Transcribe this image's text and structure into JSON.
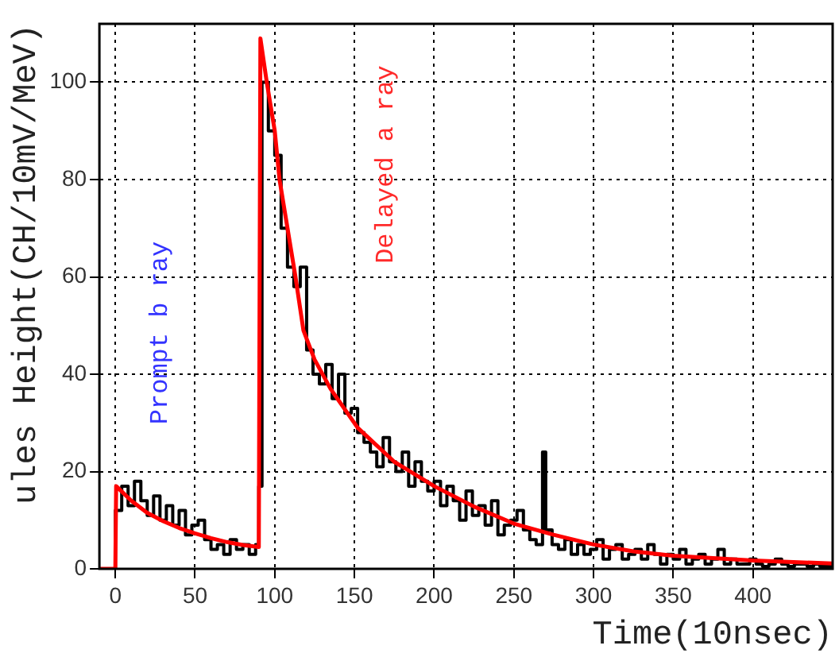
{
  "chart_data": {
    "type": "step",
    "xlabel": "Time(10nsec)",
    "ylabel": "ules Height(CH/10mV/MeV)",
    "xlim": [
      -10,
      450
    ],
    "xticks": [
      0,
      50,
      100,
      150,
      200,
      250,
      300,
      350,
      400
    ],
    "ylim": [
      0,
      112
    ],
    "yticks": [
      0,
      20,
      40,
      60,
      80,
      100
    ],
    "grid": true,
    "legend": false,
    "marker": "none",
    "series": [
      {
        "type": "step",
        "color": "#000000",
        "x": [
          -10,
          0,
          4,
          8,
          12,
          16,
          20,
          24,
          28,
          32,
          36,
          40,
          44,
          48,
          52,
          56,
          60,
          64,
          68,
          72,
          76,
          80,
          84,
          88,
          90,
          92,
          96,
          100,
          104,
          108,
          112,
          116,
          120,
          124,
          128,
          132,
          136,
          140,
          144,
          148,
          152,
          156,
          160,
          164,
          168,
          172,
          176,
          180,
          184,
          188,
          192,
          196,
          200,
          204,
          208,
          212,
          216,
          220,
          224,
          228,
          232,
          236,
          240,
          244,
          248,
          252,
          256,
          260,
          264,
          268,
          270,
          274,
          278,
          282,
          286,
          290,
          294,
          298,
          302,
          306,
          310,
          314,
          318,
          322,
          326,
          330,
          334,
          338,
          342,
          346,
          350,
          354,
          358,
          362,
          366,
          370,
          374,
          378,
          382,
          386,
          390,
          394,
          398,
          402,
          406,
          410,
          414,
          418,
          422,
          426,
          430,
          434,
          438,
          442,
          446,
          450
        ],
        "values": [
          0,
          12,
          17,
          13,
          18,
          14,
          11,
          15,
          10,
          13,
          9,
          12,
          7,
          9,
          10,
          6,
          4,
          5,
          3,
          6,
          4,
          5,
          3,
          5,
          17,
          100,
          90,
          85,
          70,
          62,
          58,
          62,
          45,
          40,
          38,
          42,
          35,
          40,
          32,
          33,
          28,
          26,
          24,
          21,
          27,
          22,
          20,
          24,
          17,
          22,
          18,
          16,
          18,
          13,
          17,
          14,
          10,
          16,
          11,
          13,
          9,
          14,
          7,
          9,
          10,
          12,
          8,
          6,
          5,
          24,
          8,
          5,
          4,
          6,
          3,
          5,
          3,
          4,
          6,
          2,
          4,
          5,
          2,
          3,
          4,
          2,
          5,
          3,
          1,
          3,
          2,
          4,
          1,
          2,
          3,
          1,
          2,
          4,
          1,
          2,
          1,
          1,
          2,
          1,
          0.5,
          1,
          2,
          1,
          0.5,
          1,
          1,
          0.5,
          1,
          0.5,
          0.5,
          0.5
        ]
      },
      {
        "type": "line",
        "color": "#ff0000",
        "x": [
          -10,
          0,
          0.5,
          10,
          20,
          30,
          40,
          50,
          60,
          70,
          80,
          90,
          91,
          95,
          100,
          103,
          108,
          113,
          118,
          125,
          135,
          152,
          175,
          200,
          225,
          250,
          275,
          300,
          325,
          350,
          400,
          450
        ],
        "values": [
          0,
          0,
          17,
          14,
          11.5,
          9.8,
          8.4,
          7.3,
          6.3,
          5.5,
          4.9,
          4.5,
          109,
          100,
          90,
          80,
          70,
          60,
          49,
          43,
          37,
          29,
          22,
          17,
          12.8,
          9.3,
          7,
          5,
          3.6,
          2.7,
          1.7,
          1.1
        ]
      }
    ],
    "annotations": [
      "Prompt b ray",
      "Delayed a ray"
    ]
  }
}
